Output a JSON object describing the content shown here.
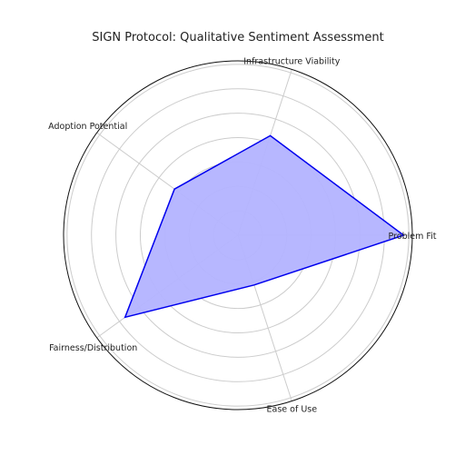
{
  "chart_data": {
    "type": "radar",
    "title": "SIGN Protocol: Qualitative Sentiment Assessment",
    "categories": [
      "Problem Fit",
      "Infrastructure Viability",
      "Adoption Potential",
      "Fairness/Distribution",
      "Ease of Use"
    ],
    "series": [
      {
        "values": [
          0.95,
          0.6,
          0.45,
          0.8,
          0.3
        ]
      }
    ],
    "rlim": [
      0,
      1
    ],
    "rings": [
      0.14,
      0.28,
      0.42,
      0.56,
      0.7,
      0.84,
      0.98
    ],
    "grid": true,
    "legend": "none",
    "colors": {
      "line": "#0000ee",
      "fill": "#b3b3ff",
      "grid": "#cccccc",
      "frame": "#111111"
    }
  }
}
